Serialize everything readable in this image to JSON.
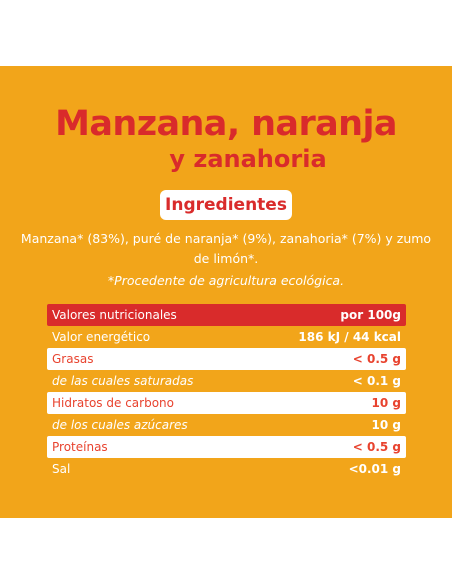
{
  "title": {
    "line1": "Manzana, naranja",
    "line2": "y zanahoria"
  },
  "ingredients": {
    "heading": "Ingredientes",
    "text": "Manzana* (83%), puré de naranja* (9%), zanahoria* (7%) y zumo de limón*.",
    "note": "*Procedente de agricultura ecológica."
  },
  "nutrition": {
    "header_label": "Valores nutricionales",
    "header_value": "por 100g",
    "rows": [
      {
        "label": "Valor energético",
        "value": "186 kJ / 44 kcal"
      },
      {
        "label": "Grasas",
        "value": "< 0.5 g"
      },
      {
        "label": "de las cuales saturadas",
        "value": "< 0.1 g"
      },
      {
        "label": "Hidratos de carbono",
        "value": "10 g"
      },
      {
        "label": "de los cuales azúcares",
        "value": "10 g"
      },
      {
        "label": "Proteínas",
        "value": "< 0.5 g"
      },
      {
        "label": "Sal",
        "value": "<0.01 g"
      }
    ]
  },
  "colors": {
    "background": "#f2a51a",
    "accent_red": "#d92b2b",
    "white": "#ffffff"
  }
}
